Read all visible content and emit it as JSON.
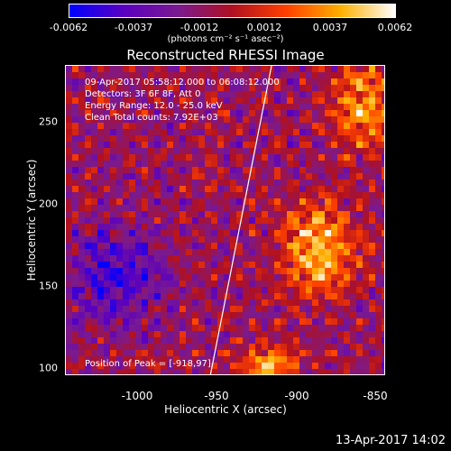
{
  "colorbar": {
    "ticks": [
      "-0.0062",
      "-0.0037",
      "-0.0012",
      "0.0012",
      "0.0037",
      "0.0062"
    ],
    "units": "(photons cm⁻² s⁻¹ asec⁻²)",
    "colors": [
      "#0000ff",
      "#5a00c0",
      "#7a1a90",
      "#b01020",
      "#ff4000",
      "#ffb000",
      "#ffffff"
    ]
  },
  "title": "Reconstructed RHESSI Image",
  "annotations": {
    "time_range": "09-Apr-2017 05:58:12.000 to 06:08:12.000",
    "detectors": "Detectors: 3F 6F 8F, Att 0",
    "energy": "Energy Range: 12.0 - 25.0 keV",
    "clean": "Clean     Total counts: 7.92E+03",
    "peak": "Position of Peak = [-918,97]"
  },
  "axes": {
    "xlabel": "Heliocentric X (arcsec)",
    "ylabel": "Heliocentric Y (arcsec)",
    "xticks": [
      "-1000",
      "-950",
      "-900",
      "-850"
    ],
    "yticks": [
      "100",
      "150",
      "200",
      "250"
    ],
    "xlim": [
      -1045,
      -845
    ],
    "ylim": [
      93,
      290
    ]
  },
  "timestamp": "13-Apr-2017 14:02"
}
